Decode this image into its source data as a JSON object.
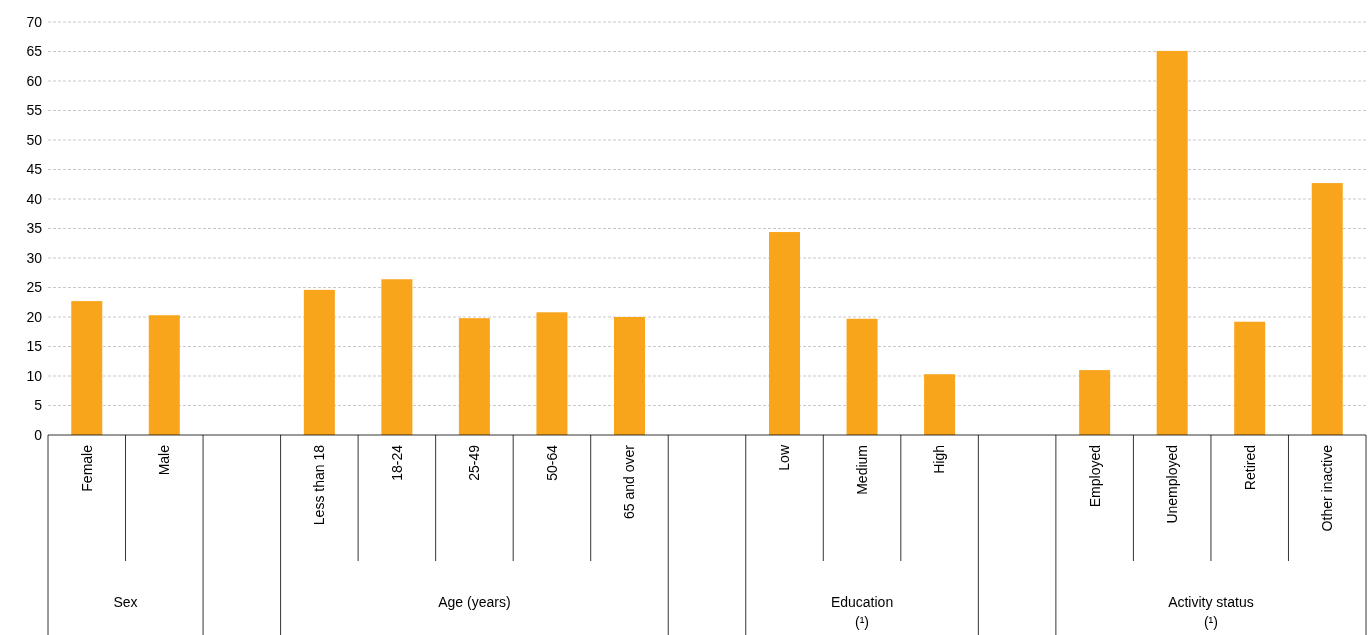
{
  "chart_data": {
    "type": "bar",
    "categories": [
      "Female",
      "Male",
      null,
      "Less than 18",
      "18-24",
      "25-49",
      "50-64",
      "65 and over",
      null,
      "Low",
      "Medium",
      "High",
      null,
      "Employed",
      "Unemployed",
      "Retired",
      "Other inactive"
    ],
    "values": [
      22.7,
      20.3,
      null,
      24.6,
      26.4,
      19.8,
      20.8,
      20.0,
      null,
      34.4,
      19.7,
      10.3,
      null,
      11.0,
      65.1,
      19.2,
      42.7
    ],
    "color": "#f9a51c",
    "ylim": [
      0,
      70
    ],
    "yticks": [
      0,
      5,
      10,
      15,
      20,
      25,
      30,
      35,
      40,
      45,
      50,
      55,
      60,
      65,
      70
    ],
    "grid": "y",
    "annotations": [
      "Sex",
      "Age (years)",
      "Education\n(¹)",
      "Activity status\n(¹)"
    ]
  }
}
